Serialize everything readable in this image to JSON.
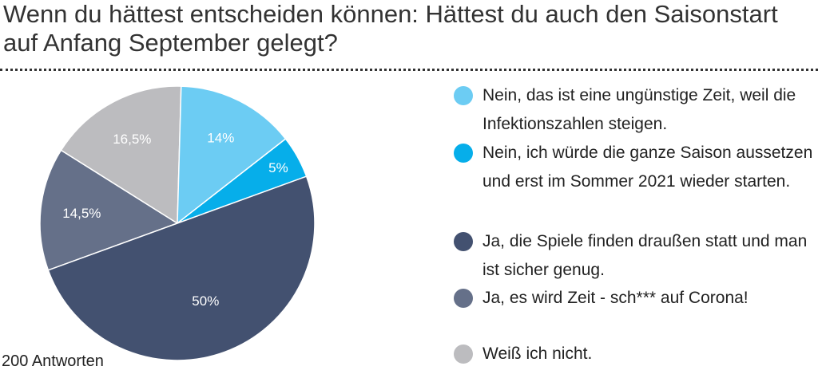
{
  "chart_data": {
    "type": "pie",
    "title": "Wenn du hättest entscheiden können: Hättest du auch den Saisonstart auf Anfang September gelegt?",
    "unit": "%",
    "slices": [
      {
        "label": "Ja, es wird Zeit - sch*** auf Corona!",
        "value": 14.5,
        "value_label": "14,5%",
        "color": "#657089"
      },
      {
        "label": "Weiß ich nicht.",
        "value": 16.5,
        "value_label": "16,5%",
        "color": "#bcbcbf"
      },
      {
        "label": "Nein, das ist eine ungünstige Zeit, weil die Infektionszahlen steigen.",
        "value": 14,
        "value_label": "14%",
        "color": "#6cccf3"
      },
      {
        "label": "Nein, ich würde die ganze Saison aussetzen und erst im Sommer 2021 wieder starten.",
        "value": 5,
        "value_label": "5%",
        "color": "#06aeea"
      },
      {
        "label": "Ja, die Spiele finden draußen statt und man ist sicher genug.",
        "value": 50,
        "value_label": "50%",
        "color": "#435170"
      }
    ],
    "legend": [
      {
        "label": "Nein, das ist eine ungünstige Zeit, weil die Infektionszahlen steigen.",
        "color": "#6cccf3"
      },
      {
        "label": "Nein, ich würde die ganze Saison aussetzen und erst im Sommer 2021 wieder starten.",
        "color": "#06aeea"
      },
      {
        "label": "Ja, die Spiele finden draußen statt und man ist sicher genug.",
        "color": "#435170"
      },
      {
        "label": "Ja, es wird Zeit - sch*** auf Corona!",
        "color": "#657089"
      },
      {
        "label": "Weiß ich nicht.",
        "color": "#bcbcbf"
      }
    ],
    "note": "200 Antworten"
  }
}
